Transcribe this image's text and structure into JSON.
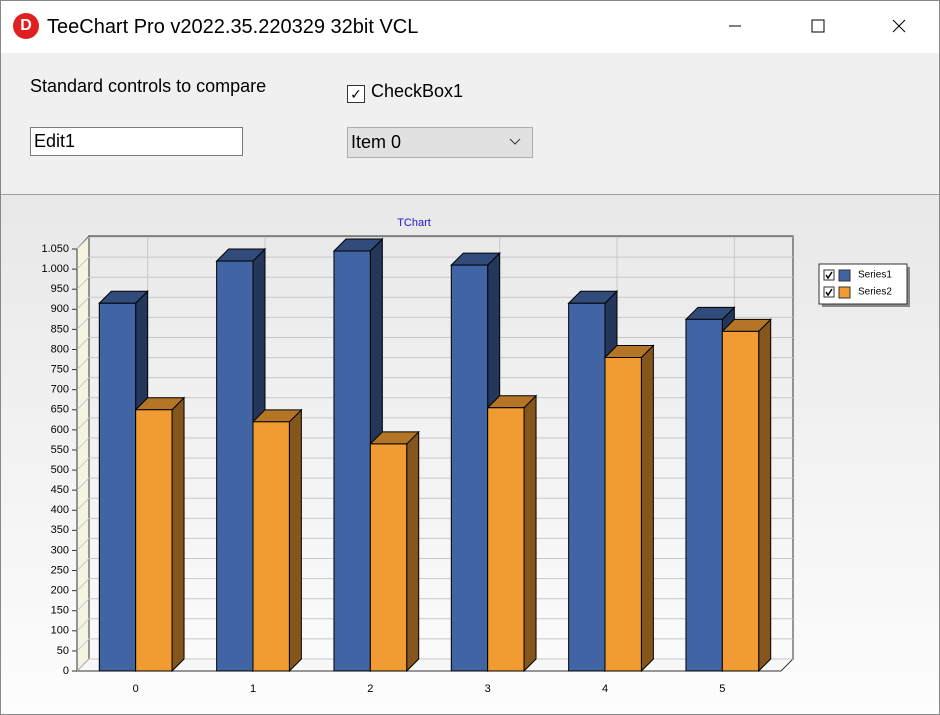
{
  "window": {
    "title": "TeeChart Pro v2022.35.220329 32bit VCL"
  },
  "controls": {
    "label": "Standard controls to compare",
    "checkbox": "CheckBox1",
    "edit": "Edit1",
    "combo": "Item 0"
  },
  "chart_data": {
    "type": "bar",
    "title": "TChart",
    "view3d": true,
    "grid": true,
    "legend": "right",
    "categories": [
      "0",
      "1",
      "2",
      "3",
      "4",
      "5"
    ],
    "series": [
      {
        "name": "Series1",
        "color": "#4164a4",
        "values": [
          915,
          1020,
          1045,
          1010,
          915,
          875
        ]
      },
      {
        "name": "Series2",
        "color": "#f19c33",
        "values": [
          650,
          620,
          565,
          655,
          780,
          845
        ]
      }
    ],
    "ylim": [
      0,
      1050
    ],
    "yticks": [
      0,
      50,
      100,
      150,
      200,
      250,
      300,
      350,
      400,
      450,
      500,
      550,
      600,
      650,
      700,
      750,
      800,
      850,
      900,
      950,
      {
        "value": 1000,
        "label": "1.000"
      },
      {
        "value": 1050,
        "label": "1.050"
      }
    ]
  }
}
